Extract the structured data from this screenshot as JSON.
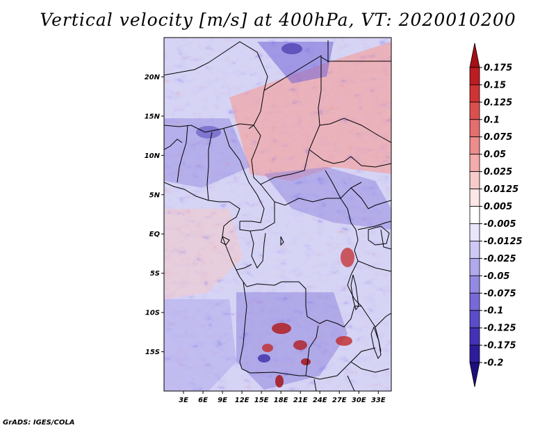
{
  "title": "Vertical velocity [m/s] at 400hPa, VT: 2020010200",
  "credit": "GrADS: IGES/COLA",
  "map": {
    "lat_labels": [
      {
        "lat": 20,
        "text": "20N"
      },
      {
        "lat": 15,
        "text": "15N"
      },
      {
        "lat": 10,
        "text": "10N"
      },
      {
        "lat": 5,
        "text": "5N"
      },
      {
        "lat": 0,
        "text": "EQ"
      },
      {
        "lat": -5,
        "text": "5S"
      },
      {
        "lat": -10,
        "text": "10S"
      },
      {
        "lat": -15,
        "text": "15S"
      }
    ],
    "lon_labels": [
      {
        "lon": 3,
        "text": "3E"
      },
      {
        "lon": 6,
        "text": "6E"
      },
      {
        "lon": 9,
        "text": "9E"
      },
      {
        "lon": 12,
        "text": "12E"
      },
      {
        "lon": 15,
        "text": "15E"
      },
      {
        "lon": 18,
        "text": "18E"
      },
      {
        "lon": 21,
        "text": "21E"
      },
      {
        "lon": 24,
        "text": "24E"
      },
      {
        "lon": 27,
        "text": "27E"
      },
      {
        "lon": 30,
        "text": "30E"
      },
      {
        "lon": 33,
        "text": "33E"
      }
    ],
    "lon_range": [
      0,
      35
    ],
    "lat_range": [
      -20,
      25
    ]
  },
  "colorbar": {
    "levels": [
      "0.175",
      "0.15",
      "0.125",
      "0.1",
      "0.075",
      "0.05",
      "0.025",
      "0.0125",
      "0.005",
      "-0.005",
      "-0.0125",
      "-0.025",
      "-0.05",
      "-0.075",
      "-0.1",
      "-0.125",
      "-0.175",
      "-0.2"
    ],
    "colors": [
      "#a50f15",
      "#bd1c22",
      "#cf3333",
      "#dc4f4f",
      "#e56e6e",
      "#ec8c8c",
      "#f3abab",
      "#f8cbcb",
      "#fce6e6",
      "#ffffff",
      "#e8e6fb",
      "#cdc8f4",
      "#b0a9ec",
      "#938ae3",
      "#776ad8",
      "#5b4ccb",
      "#4332b8",
      "#2d1d9c",
      "#1d0f80"
    ]
  }
}
